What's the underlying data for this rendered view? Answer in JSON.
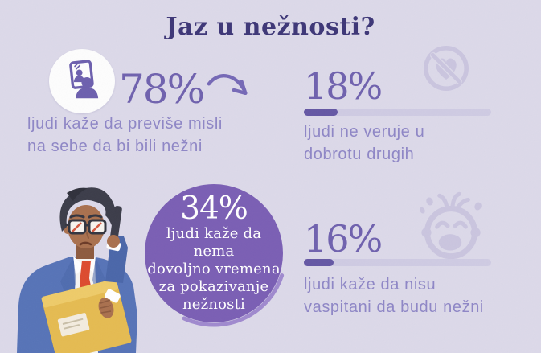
{
  "title": "Jaz u nežnosti?",
  "stats": {
    "self_focus": {
      "value": "78%",
      "caption_lines": [
        "ljudi kaže da previše misli",
        "na sebe da bi bili nežni"
      ],
      "icon": "mirror-self-reflection-icon"
    },
    "distrust": {
      "value": "18%",
      "percent": 18,
      "caption_lines": [
        "ljudi ne veruje u",
        "dobrotu drugih"
      ],
      "icon": "no-heart-icon"
    },
    "no_time": {
      "value": "34%",
      "caption_lines": [
        "ljudi kaže da nema",
        "dovoljno vremena",
        "za pokazivanje",
        "nežnosti"
      ]
    },
    "upbringing": {
      "value": "16%",
      "percent": 16,
      "caption_lines": [
        "ljudi kaže da nisu",
        "vaspitani da budu nežni"
      ],
      "icon": "crying-baby-icon"
    }
  },
  "illustration": "worried-man-on-phone-holding-yellow-folder",
  "icons": {
    "mirror-self-reflection-icon": "person looking at self in mirror",
    "no-heart-icon": "heart in crossed-out circle",
    "crying-baby-icon": "crying baby face",
    "curved-arrow-icon": "curved arrow pointing down-right"
  },
  "colors": {
    "background": "#dcd9e9",
    "title": "#3d3677",
    "number": "#6f61ae",
    "caption": "#8e86c6",
    "circle_fill": "#7a5eb4",
    "circle_text": "#ffffff",
    "watermark": "#cac5df",
    "bar_track": "#cfcbe3",
    "bar_fill": "#6457a4",
    "icon_purple": "#6c5fae",
    "accent_arrow": "#7568b6"
  },
  "chart_data": {
    "type": "bar",
    "title": "Jaz u nežnosti?",
    "unit": "%",
    "categories": [
      "ljudi kaže da previše misli na sebe da bi bili nežni",
      "ljudi ne veruje u dobrotu drugih",
      "ljudi kaže da nema dovoljno vremena za pokazivanje nežnosti",
      "ljudi kaže da nisu vaspitani da budu nežni"
    ],
    "values": [
      78,
      18,
      34,
      16
    ],
    "legend": false,
    "notes": "infographic stat callouts; 18% and 16% shown with horizontal progress bars, 34% inside purple circle"
  }
}
